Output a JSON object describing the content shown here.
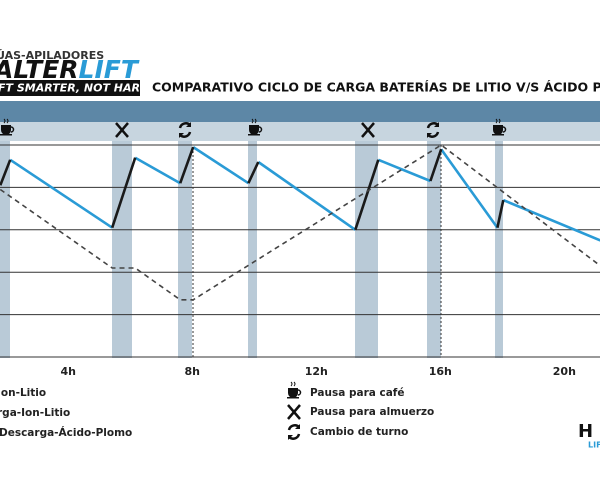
{
  "logo": {
    "top": "ÚAS-APILADORES",
    "name_a": "ALTER",
    "name_b": "LIFT",
    "slogan": "FT SMARTER, NOT HARDER",
    "corner_a": "H",
    "corner_b": "LIF"
  },
  "chart_data": {
    "type": "line",
    "title": "COMPARATIVO CICLO DE CARGA  BATERÍAS DE LITIO V/S ÁCIDO PLO",
    "xlim": [
      1.8,
      21.15
    ],
    "ylim": [
      0,
      100
    ],
    "grid": true,
    "xticks": [
      {
        "value": 4,
        "label": "4h"
      },
      {
        "value": 8,
        "label": "8h"
      },
      {
        "value": 12,
        "label": "12h"
      },
      {
        "value": 16,
        "label": "16h"
      },
      {
        "value": 20,
        "label": "20h"
      }
    ],
    "series": [
      {
        "name": "Ion-Litio",
        "color": "#2a9bd6",
        "dash": false,
        "x": [
          2.13,
          5.42,
          null,
          6.16,
          7.61,
          null,
          8.03,
          9.81,
          null,
          10.13,
          13.26,
          null,
          14.0,
          15.68,
          null,
          16.03,
          17.84,
          null,
          18.03,
          21.16
        ],
        "values": [
          93,
          61,
          null,
          94,
          82,
          null,
          99,
          82,
          null,
          92,
          60,
          null,
          93,
          83,
          null,
          98,
          61,
          null,
          74,
          55
        ]
      },
      {
        "name": "rga-Ion-Litio",
        "color": "#1a1a1a",
        "dash": false,
        "x": [
          1.81,
          2.13,
          null,
          5.42,
          6.16,
          null,
          7.61,
          8.03,
          null,
          9.81,
          10.13,
          null,
          13.26,
          14.0,
          null,
          15.68,
          16.03,
          null,
          17.84,
          18.03
        ],
        "values": [
          81,
          93,
          null,
          61,
          94,
          null,
          82,
          99,
          null,
          82,
          92,
          null,
          60,
          93,
          null,
          83,
          98,
          null,
          61,
          74
        ]
      },
      {
        "name": "Descarga-Ácido-Plomo",
        "color": "#444444",
        "dash": true,
        "x": [
          1.81,
          5.42,
          6.16,
          7.61,
          8.03,
          16.03,
          21.16
        ],
        "values": [
          79,
          42,
          42,
          27,
          27,
          100,
          43
        ]
      }
    ],
    "legend_icons": [
      "Pausa para café",
      "Pausa para almuerzo",
      "Cambio de turno"
    ]
  }
}
